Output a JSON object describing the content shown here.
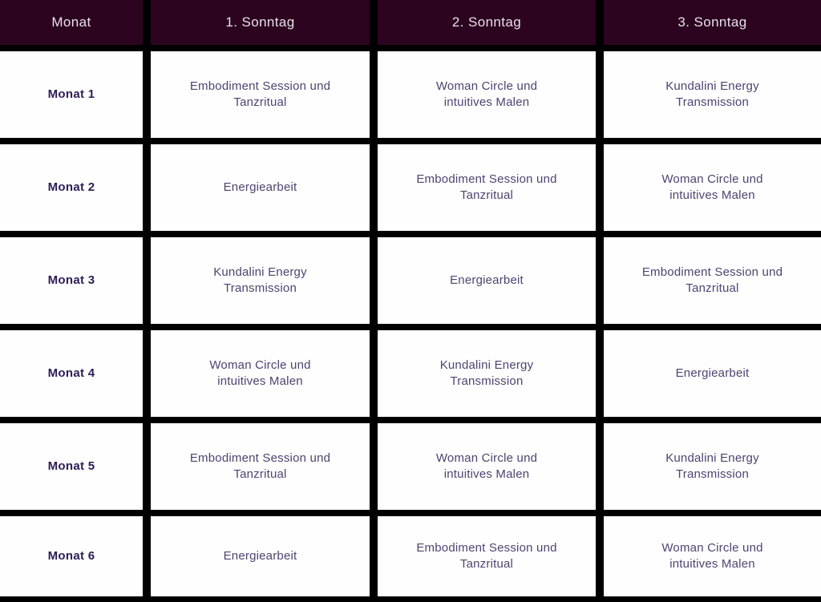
{
  "table": {
    "columns": [
      "Monat",
      "1. Sonntag",
      "2. Sonntag",
      "3. Sonntag"
    ],
    "rows": [
      {
        "label": "Monat 1",
        "cells": [
          "Embodiment Session und\nTanzritual",
          "Woman Circle und\nintuitives Malen",
          "Kundalini Energy\nTransmission"
        ]
      },
      {
        "label": "Monat 2",
        "cells": [
          "Energiearbeit",
          "Embodiment Session und\nTanzritual",
          "Woman Circle und\nintuitives Malen"
        ]
      },
      {
        "label": "Monat 3",
        "cells": [
          "Kundalini Energy\nTransmission",
          "Energiearbeit",
          "Embodiment Session und\nTanzritual"
        ]
      },
      {
        "label": "Monat 4",
        "cells": [
          "Woman Circle und\nintuitives Malen",
          "Kundalini Energy\nTransmission",
          "Energiearbeit"
        ]
      },
      {
        "label": "Monat 5",
        "cells": [
          "Embodiment Session und\nTanzritual",
          "Woman Circle und\nintuitives Malen",
          "Kundalini Energy\nTransmission"
        ]
      },
      {
        "label": "Monat 6",
        "cells": [
          "Energiearbeit",
          "Embodiment Session und\nTanzritual",
          "Woman Circle und\nintuitives Malen"
        ]
      }
    ]
  },
  "chart_data": {
    "type": "table",
    "columns": [
      "Monat",
      "1. Sonntag",
      "2. Sonntag",
      "3. Sonntag"
    ],
    "rows": [
      [
        "Monat 1",
        "Embodiment Session und Tanzritual",
        "Woman Circle und intuitives Malen",
        "Kundalini Energy Transmission"
      ],
      [
        "Monat 2",
        "Energiearbeit",
        "Embodiment Session und Tanzritual",
        "Woman Circle und intuitives Malen"
      ],
      [
        "Monat 3",
        "Kundalini Energy Transmission",
        "Energiearbeit",
        "Embodiment Session und Tanzritual"
      ],
      [
        "Monat 4",
        "Woman Circle und intuitives Malen",
        "Kundalini Energy Transmission",
        "Energiearbeit"
      ],
      [
        "Monat 5",
        "Embodiment Session und Tanzritual",
        "Woman Circle und intuitives Malen",
        "Kundalini Energy Transmission"
      ],
      [
        "Monat 6",
        "Energiearbeit",
        "Embodiment Session und Tanzritual",
        "Woman Circle und intuitives Malen"
      ]
    ]
  },
  "colors": {
    "header_bg": "#2d0420",
    "header_text": "#e7e0e8",
    "cell_bg": "#fefefe",
    "cell_text": "#4e4470",
    "row_label_text": "#2e1c57",
    "grid_lines": "#000000"
  }
}
